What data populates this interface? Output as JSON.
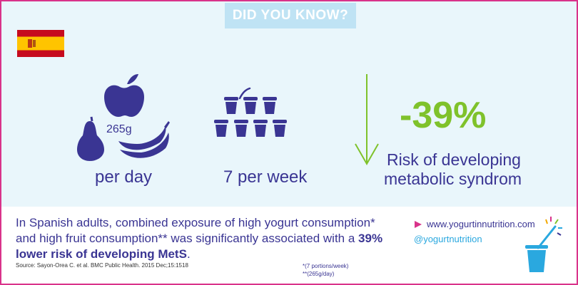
{
  "title": "DID YOU KNOW?",
  "colors": {
    "accent_purple": "#3a3593",
    "accent_green": "#7fc22b",
    "accent_pink": "#d9338a",
    "accent_light_blue": "#2aa8df",
    "title_bg": "#bfe3f4"
  },
  "flag": {
    "icon": "spain-flag-icon"
  },
  "fruit": {
    "amount": "265g",
    "caption": "per day"
  },
  "yogurt": {
    "caption": "7 per week"
  },
  "result": {
    "value": "-39%",
    "line1": "Risk of developing",
    "line2": "metabolic syndrom"
  },
  "footer": {
    "text_part1": "In Spanish adults, combined exposure of high yogurt consumption* and high fruit consumption** was significantly associated with a ",
    "text_bold": "39% lower risk of developing MetS",
    "text_end": ".",
    "source": "Source: Sayon-Orea C. et al. BMC Public Health. 2015 Dec;15:1518",
    "footnote1": "*(7 portions/week)",
    "footnote2": "**(265g/day)",
    "website": "www.yogurtinnutrition.com",
    "handle": "@yogurtnutrition"
  }
}
